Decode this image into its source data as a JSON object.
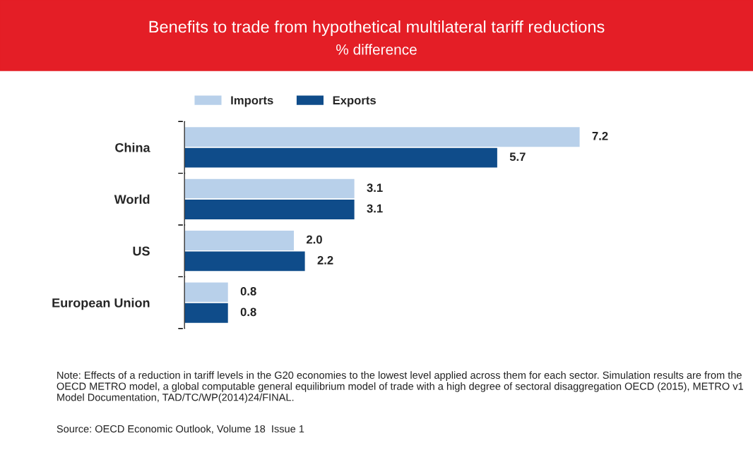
{
  "chart_data": {
    "type": "bar",
    "orientation": "horizontal",
    "title": "Benefits to trade from hypothetical multilateral tariff reductions",
    "subtitle": "% difference",
    "categories": [
      "China",
      "World",
      "US",
      "European Union"
    ],
    "series": [
      {
        "name": "Imports",
        "color": "#b8d0ea",
        "values": [
          7.2,
          3.1,
          2.0,
          0.8
        ],
        "value_labels": [
          "7.2",
          "3.1",
          "2.0",
          "0.8"
        ]
      },
      {
        "name": "Exports",
        "color": "#0f4c8a",
        "values": [
          5.7,
          3.1,
          2.2,
          0.8
        ],
        "value_labels": [
          "5.7",
          "3.1",
          "2.2",
          "0.8"
        ]
      }
    ],
    "legend": "top",
    "grid": false,
    "annotations": [
      "Note: Effects of a reduction in tariff levels in the G20 economies to the lowest level applied across them for each sector. Simulation results are from the OECD METRO model, a global computable general equilibrium model of trade with a high degree of sectoral disaggregation OECD (2015), METRO v1 Model Documentation, TAD/TC/WP(2014)24/FINAL.",
      "Source: OECD Economic Outlook, Volume 18  Issue 1"
    ]
  }
}
